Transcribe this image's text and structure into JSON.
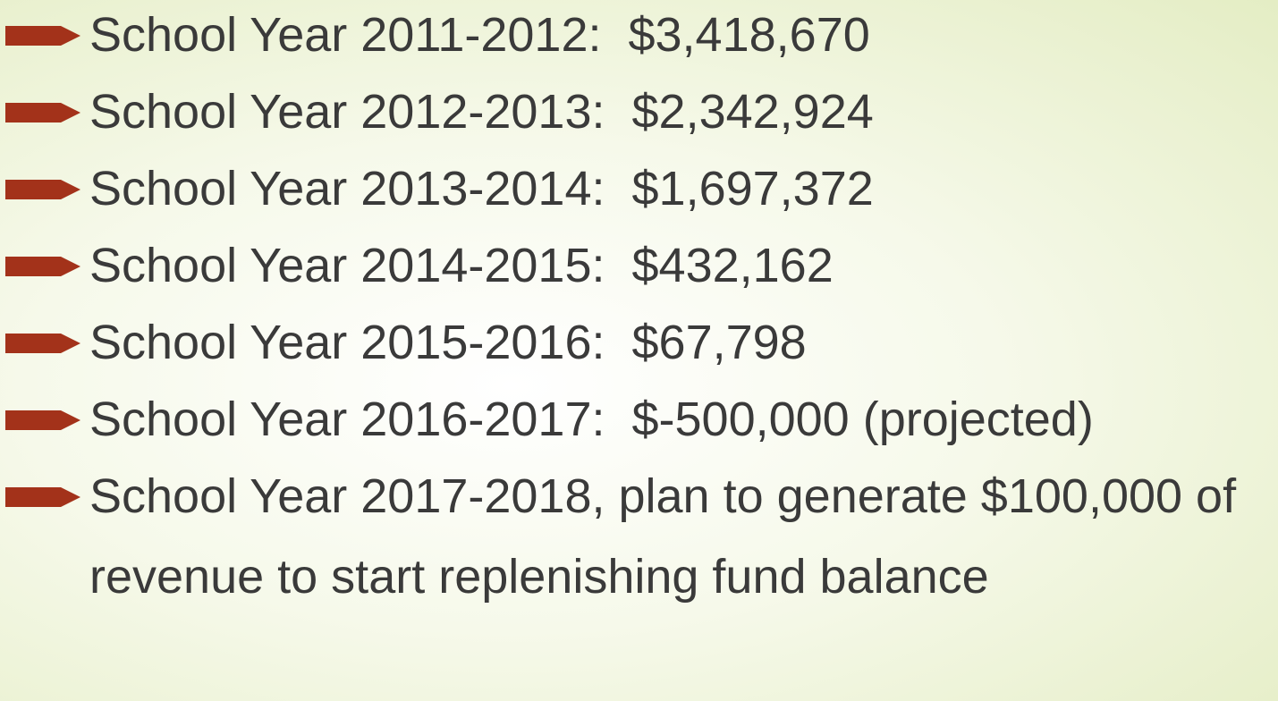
{
  "bullets": [
    "School Year 2011-2012:  $3,418,670",
    "School Year 2012-2013:  $2,342,924",
    "School Year 2013-2014:  $1,697,372",
    "School Year 2014-2015:  $432,162",
    "School Year 2015-2016:  $67,798",
    "School Year 2016-2017:  $-500,000 (projected)",
    "School Year 2017-2018, plan to generate $100,000 of revenue to start replenishing fund balance"
  ]
}
